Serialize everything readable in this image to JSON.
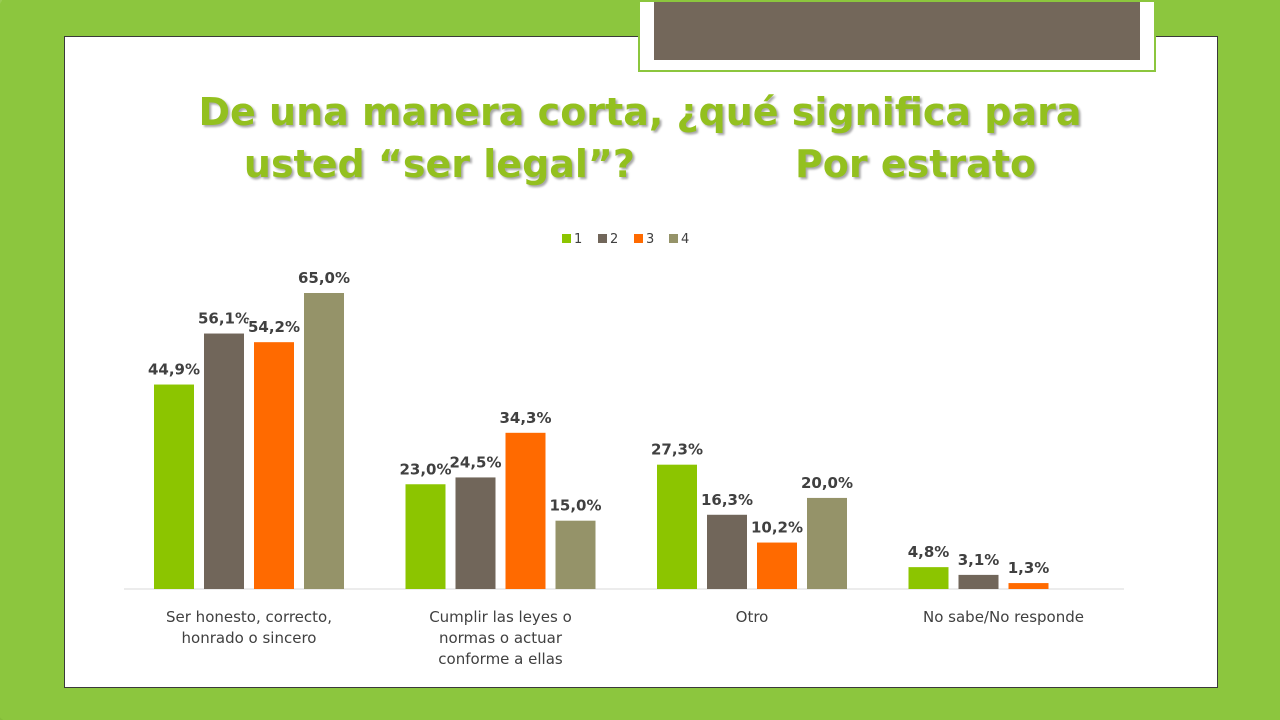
{
  "title": {
    "line1": "De una manera corta, ¿qué significa para",
    "line2a": "usted “ser legal”?",
    "line2b": "Por estrato"
  },
  "colors": {
    "background": "#8cc63e",
    "series": [
      "#8cc500",
      "#71665a",
      "#ff6a00",
      "#959369"
    ],
    "title": "#93c01f"
  },
  "chart_data": {
    "type": "bar",
    "categories": [
      [
        "Ser honesto, correcto,",
        "honrado o sincero"
      ],
      [
        "Cumplir las leyes o",
        "normas o actuar",
        "conforme a ellas"
      ],
      [
        "Otro"
      ],
      [
        "No sabe/No responde"
      ]
    ],
    "series": [
      {
        "name": "1",
        "values": [
          44.9,
          23.0,
          27.3,
          4.8
        ],
        "labels": [
          "44,9%",
          "23,0%",
          "27,3%",
          "4,8%"
        ]
      },
      {
        "name": "2",
        "values": [
          56.1,
          24.5,
          16.3,
          3.1
        ],
        "labels": [
          "56,1%",
          "24,5%",
          "16,3%",
          "3,1%"
        ]
      },
      {
        "name": "3",
        "values": [
          54.2,
          34.3,
          10.2,
          1.3
        ],
        "labels": [
          "54,2%",
          "34,3%",
          "10,2%",
          "1,3%"
        ]
      },
      {
        "name": "4",
        "values": [
          65.0,
          15.0,
          20.0,
          null
        ],
        "labels": [
          "65,0%",
          "15,0%",
          "20,0%",
          ""
        ]
      }
    ],
    "ylim": [
      0,
      65
    ],
    "legend_position": "top",
    "grid": false,
    "y_axis_visible": false
  }
}
